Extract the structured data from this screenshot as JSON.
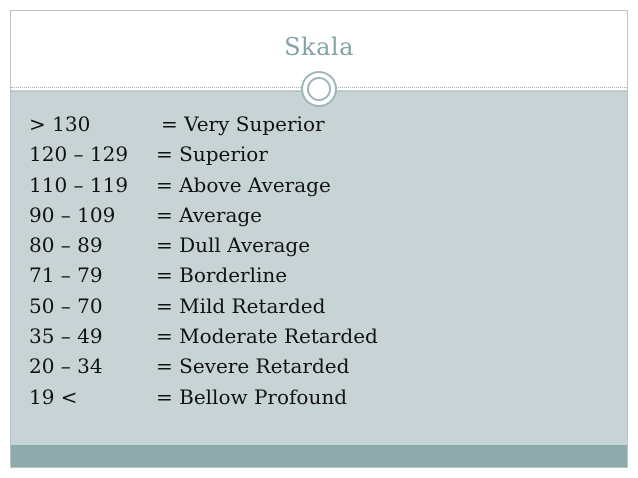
{
  "slide": {
    "title": "Skala",
    "rows": [
      {
        "range": "> 130",
        "label": "= Very Superior"
      },
      {
        "range": "120 – 129",
        "label": "= Superior"
      },
      {
        "range": "110 – 119",
        "label": "= Above Average"
      },
      {
        "range": "90 – 109",
        "label": "= Average"
      },
      {
        "range": "80 – 89",
        "label": "= Dull Average"
      },
      {
        "range": "71 – 79",
        "label": "= Borderline"
      },
      {
        "range": "50 – 70",
        "label": "= Mild Retarded"
      },
      {
        "range": "35 – 49",
        "label": "= Moderate Retarded"
      },
      {
        "range": "20 – 34",
        "label": "= Severe Retarded"
      },
      {
        "range": "19 <",
        "label": "= Bellow Profound"
      }
    ]
  },
  "theme": {
    "title_color": "#84a3a8",
    "content_background": "#c8d3d6",
    "footer_color": "#8eaaab",
    "ornament": "circle-ornament-icon"
  }
}
